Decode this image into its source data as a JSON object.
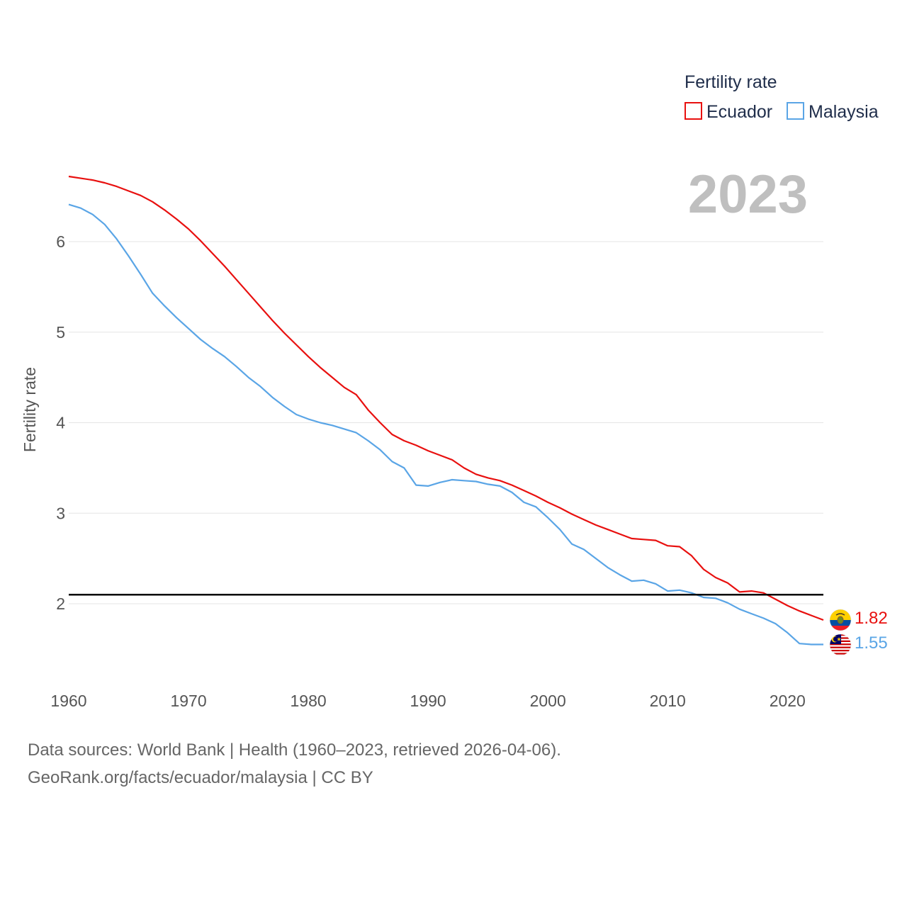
{
  "chart_data": {
    "type": "line",
    "title": "2023",
    "ylabel": "Fertility rate",
    "xlabel": "",
    "xlim": [
      1960,
      2023
    ],
    "ylim": [
      1.2,
      7.0
    ],
    "x_ticks": [
      1960,
      1970,
      1980,
      1990,
      2000,
      2010,
      2020
    ],
    "y_ticks": [
      2,
      3,
      4,
      5,
      6
    ],
    "legend": {
      "title": "Fertility rate",
      "position": "top-right"
    },
    "reference_line": {
      "y": 2.1,
      "color": "#000000"
    },
    "x": [
      1960,
      1961,
      1962,
      1963,
      1964,
      1965,
      1966,
      1967,
      1968,
      1969,
      1970,
      1971,
      1972,
      1973,
      1974,
      1975,
      1976,
      1977,
      1978,
      1979,
      1980,
      1981,
      1982,
      1983,
      1984,
      1985,
      1986,
      1987,
      1988,
      1989,
      1990,
      1991,
      1992,
      1993,
      1994,
      1995,
      1996,
      1997,
      1998,
      1999,
      2000,
      2001,
      2002,
      2003,
      2004,
      2005,
      2006,
      2007,
      2008,
      2009,
      2010,
      2011,
      2012,
      2013,
      2014,
      2015,
      2016,
      2017,
      2018,
      2019,
      2020,
      2021,
      2022,
      2023
    ],
    "series": [
      {
        "name": "Ecuador",
        "color": "#e8100f",
        "end_label": "1.82",
        "values": [
          6.72,
          6.7,
          6.68,
          6.65,
          6.61,
          6.56,
          6.51,
          6.44,
          6.35,
          6.25,
          6.14,
          6.01,
          5.87,
          5.73,
          5.58,
          5.43,
          5.28,
          5.13,
          4.99,
          4.86,
          4.73,
          4.61,
          4.5,
          4.39,
          4.31,
          4.14,
          4.0,
          3.87,
          3.8,
          3.75,
          3.69,
          3.64,
          3.59,
          3.5,
          3.43,
          3.39,
          3.36,
          3.31,
          3.25,
          3.19,
          3.12,
          3.06,
          2.99,
          2.93,
          2.87,
          2.82,
          2.77,
          2.72,
          2.71,
          2.7,
          2.64,
          2.63,
          2.53,
          2.38,
          2.29,
          2.23,
          2.13,
          2.14,
          2.12,
          2.05,
          1.98,
          1.92,
          1.87,
          1.82
        ]
      },
      {
        "name": "Malaysia",
        "color": "#5aa5e6",
        "end_label": "1.55",
        "values": [
          6.41,
          6.37,
          6.3,
          6.19,
          6.03,
          5.84,
          5.64,
          5.43,
          5.29,
          5.16,
          5.04,
          4.92,
          4.82,
          4.73,
          4.62,
          4.5,
          4.4,
          4.28,
          4.18,
          4.09,
          4.04,
          4.0,
          3.97,
          3.93,
          3.89,
          3.8,
          3.7,
          3.57,
          3.5,
          3.31,
          3.3,
          3.34,
          3.37,
          3.36,
          3.35,
          3.32,
          3.3,
          3.23,
          3.12,
          3.07,
          2.95,
          2.82,
          2.66,
          2.6,
          2.5,
          2.4,
          2.32,
          2.25,
          2.26,
          2.22,
          2.14,
          2.15,
          2.12,
          2.07,
          2.06,
          2.01,
          1.94,
          1.89,
          1.84,
          1.78,
          1.68,
          1.56,
          1.55,
          1.55
        ]
      }
    ]
  },
  "source": {
    "line1": "Data sources: World Bank | Health (1960–2023, retrieved 2026-04-06).",
    "line2": "GeoRank.org/facts/ecuador/malaysia | CC BY"
  }
}
